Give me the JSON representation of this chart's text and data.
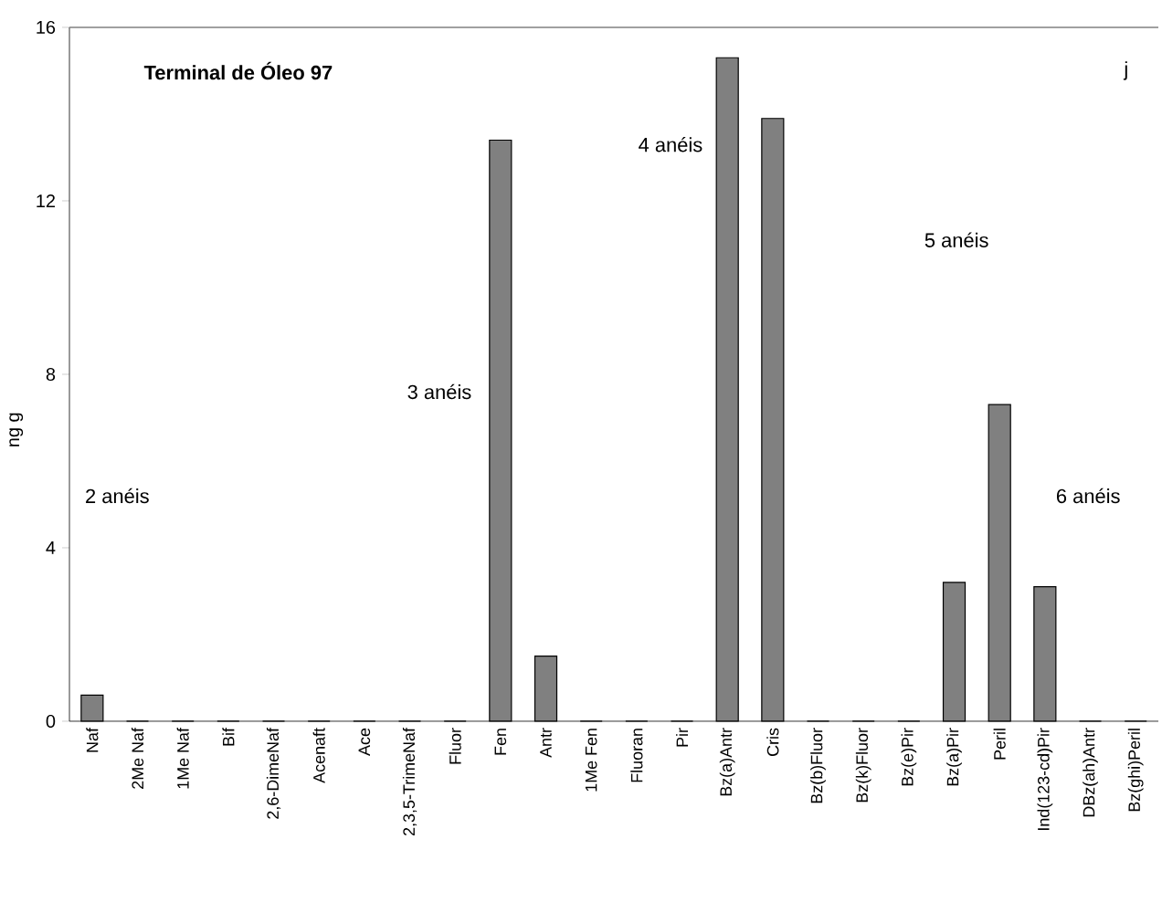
{
  "chart_data": {
    "type": "bar",
    "title": "Terminal de Óleo 97",
    "ylabel": "ng g",
    "categories": [
      "Naf",
      "2Me Naf",
      "1Me Naf",
      "Bif",
      "2,6-DimeNaf",
      "Acenaft",
      "Ace",
      "2,3,5-TrimeNaf",
      "Fluor",
      "Fen",
      "Antr",
      "1Me Fen",
      "Fluoran",
      "Pir",
      "Bz(a)Antr",
      "Cris",
      "Bz(b)Fluor",
      "Bz(k)Fluor",
      "Bz(e)Pir",
      "Bz(a)Pir",
      "Peril",
      "Ind(123-cd)Pir",
      "DBz(ah)Antr",
      "Bz(ghi)Peril"
    ],
    "values": [
      0.6,
      0,
      0,
      0,
      0,
      0,
      0,
      0,
      0,
      13.4,
      1.5,
      0,
      0,
      0,
      15.3,
      13.9,
      0,
      0,
      0,
      3.2,
      7.3,
      3.1,
      0,
      0
    ],
    "color": "#808080",
    "ylim": [
      0,
      16
    ],
    "yticks": [
      0,
      4,
      8,
      12,
      16
    ],
    "grid": false,
    "annotations": [
      "2 anéis",
      "3 anéis",
      "4 anéis",
      "5 anéis",
      "6 anéis",
      "j"
    ]
  }
}
